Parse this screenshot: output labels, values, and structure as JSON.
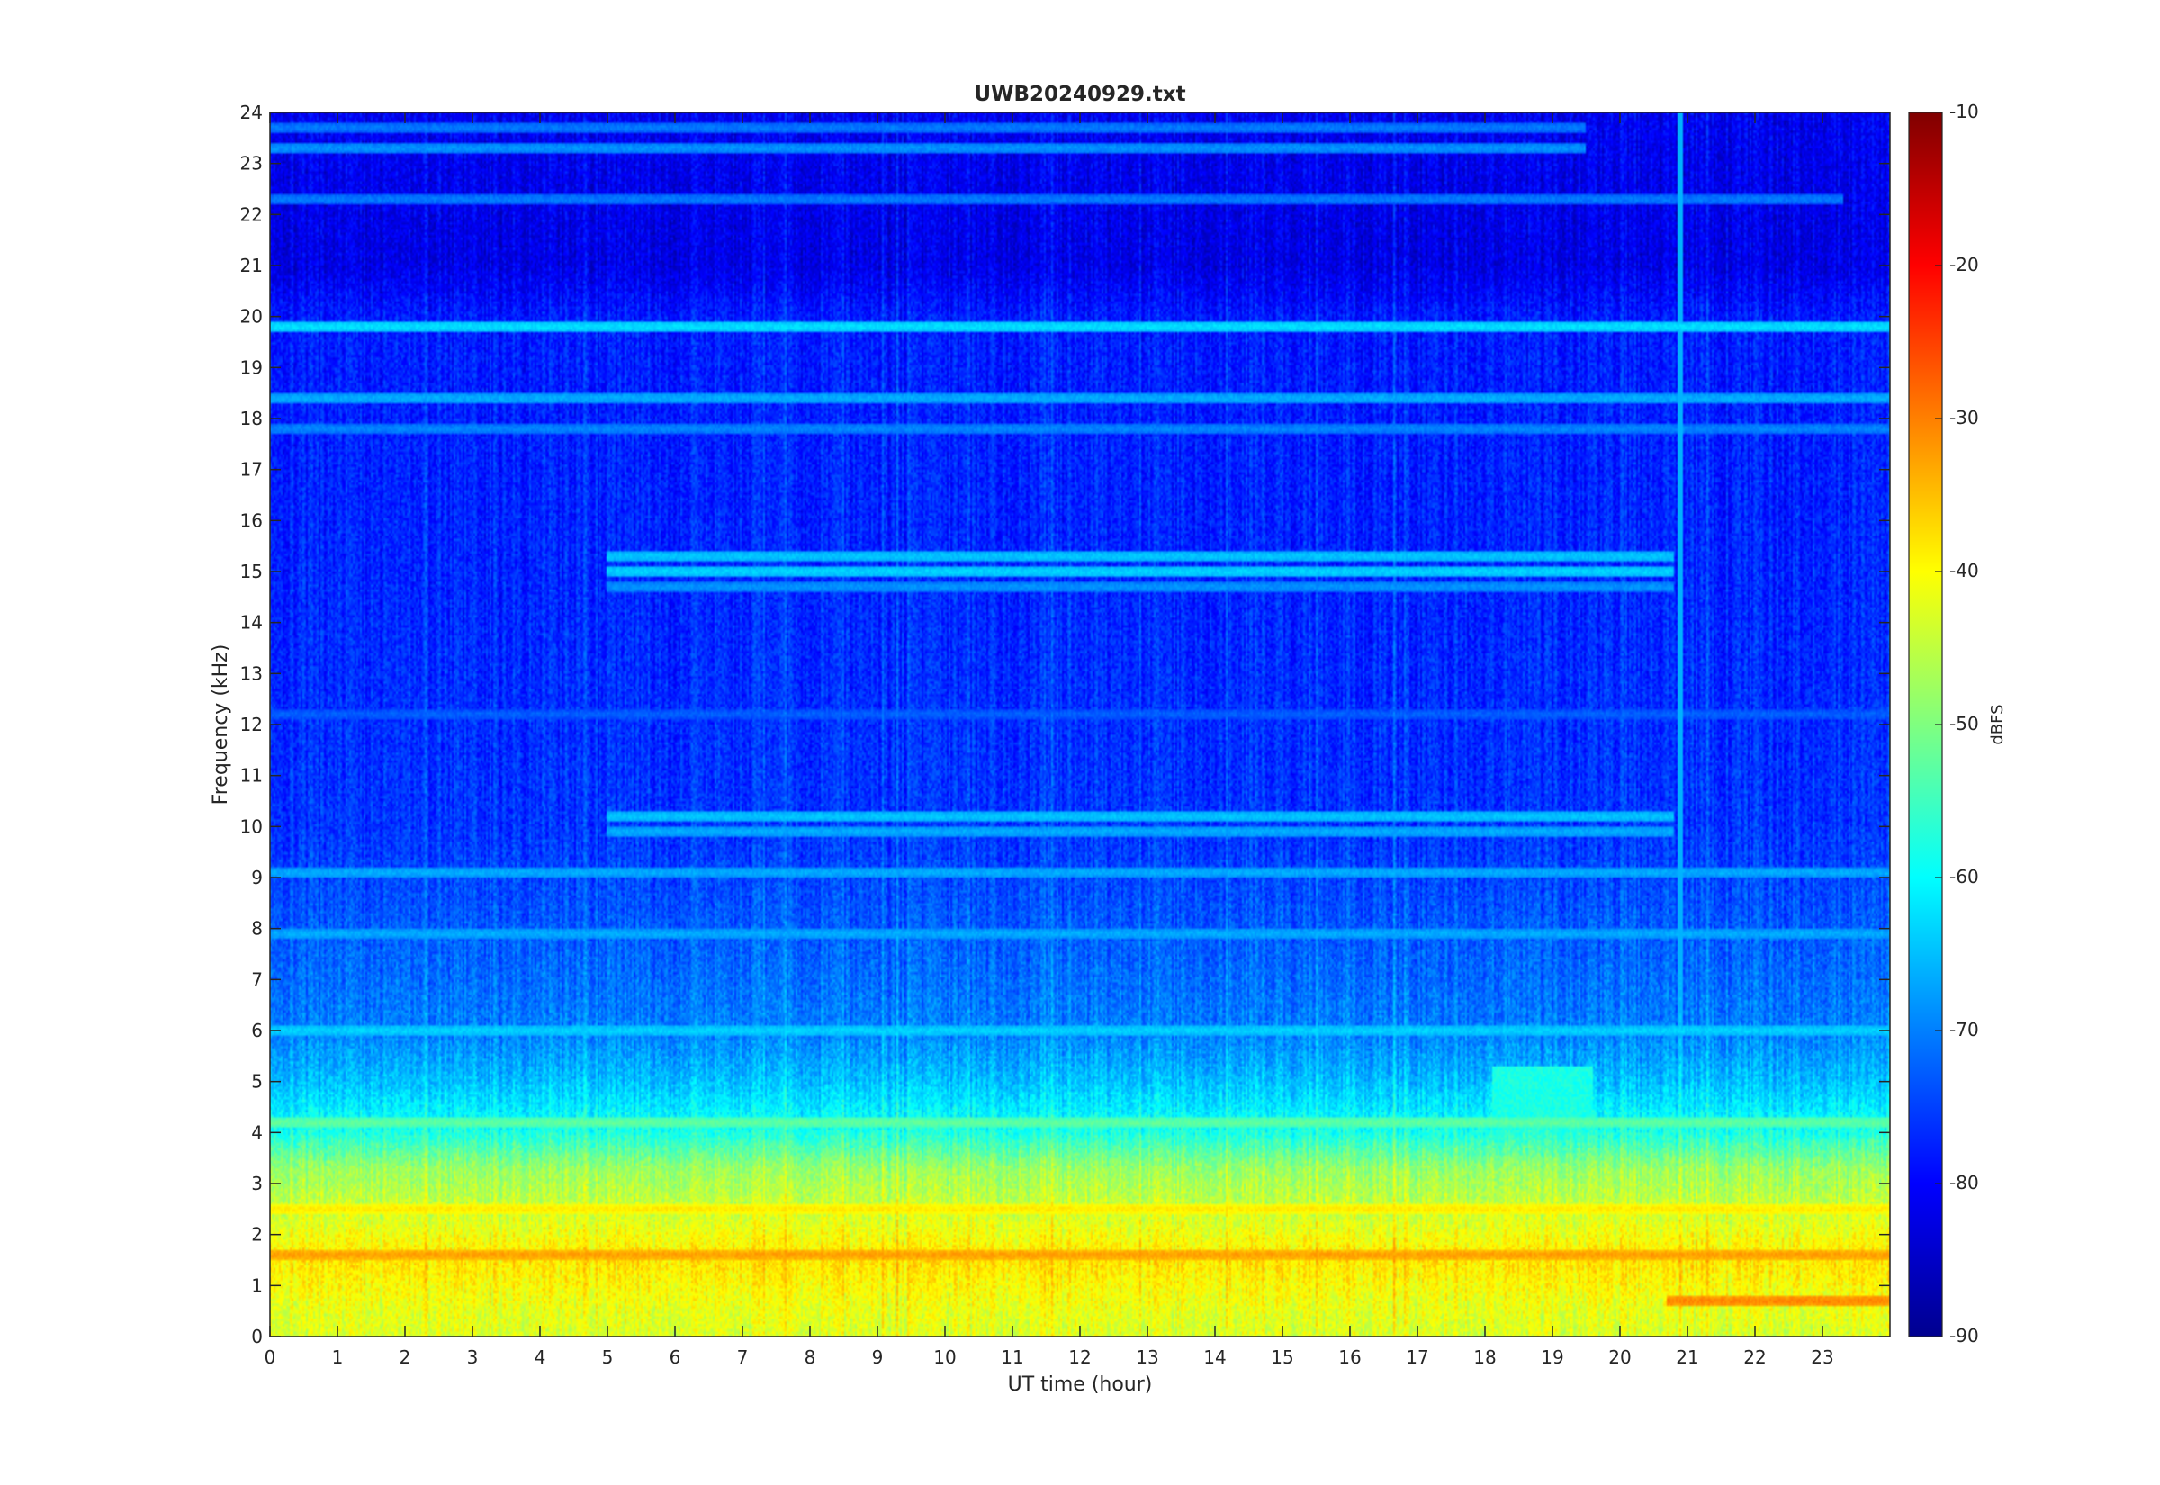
{
  "chart_data": {
    "type": "heatmap",
    "title": "UWB20240929.txt",
    "xlabel": "UT time (hour)",
    "ylabel": "Frequency (kHz)",
    "xlim": [
      0,
      24
    ],
    "ylim": [
      0,
      24
    ],
    "x_ticks": [
      "0",
      "1",
      "2",
      "3",
      "4",
      "5",
      "6",
      "7",
      "8",
      "9",
      "10",
      "11",
      "12",
      "13",
      "14",
      "15",
      "16",
      "17",
      "18",
      "19",
      "20",
      "21",
      "22",
      "23"
    ],
    "y_ticks": [
      "0",
      "1",
      "2",
      "3",
      "4",
      "5",
      "6",
      "7",
      "8",
      "9",
      "10",
      "11",
      "12",
      "13",
      "14",
      "15",
      "16",
      "17",
      "18",
      "19",
      "20",
      "21",
      "22",
      "23",
      "24"
    ],
    "colorbar": {
      "label": "dBFS",
      "range": [
        -90,
        -10
      ],
      "ticks": [
        "-10",
        "-20",
        "-30",
        "-40",
        "-50",
        "-60",
        "-70",
        "-80",
        "-90"
      ],
      "colormap": "jet"
    },
    "background_profile_dbfs": [
      {
        "f": 0,
        "v": -43
      },
      {
        "f": 0.5,
        "v": -42
      },
      {
        "f": 1.5,
        "v": -38
      },
      {
        "f": 2.5,
        "v": -44
      },
      {
        "f": 3.3,
        "v": -48
      },
      {
        "f": 4,
        "v": -58
      },
      {
        "f": 5,
        "v": -65
      },
      {
        "f": 6,
        "v": -70
      },
      {
        "f": 8,
        "v": -73
      },
      {
        "f": 10,
        "v": -76
      },
      {
        "f": 14,
        "v": -77
      },
      {
        "f": 20,
        "v": -78
      },
      {
        "f": 21,
        "v": -82
      },
      {
        "f": 24,
        "v": -81
      }
    ],
    "tone_lines": [
      {
        "freq_khz": 19.8,
        "dbfs": -62,
        "t_start": 0,
        "t_end": 24
      },
      {
        "freq_khz": 18.4,
        "dbfs": -66,
        "t_start": 0,
        "t_end": 24
      },
      {
        "freq_khz": 17.8,
        "dbfs": -69,
        "t_start": 0,
        "t_end": 24
      },
      {
        "freq_khz": 22.3,
        "dbfs": -70,
        "t_start": 0,
        "t_end": 23.3
      },
      {
        "freq_khz": 15.3,
        "dbfs": -64,
        "t_start": 5,
        "t_end": 20.8
      },
      {
        "freq_khz": 15.0,
        "dbfs": -63,
        "t_start": 5,
        "t_end": 20.8
      },
      {
        "freq_khz": 14.7,
        "dbfs": -68,
        "t_start": 5,
        "t_end": 20.8
      },
      {
        "freq_khz": 10.2,
        "dbfs": -64,
        "t_start": 5,
        "t_end": 20.8
      },
      {
        "freq_khz": 9.9,
        "dbfs": -66,
        "t_start": 5,
        "t_end": 20.8
      },
      {
        "freq_khz": 12.2,
        "dbfs": -72,
        "t_start": 0,
        "t_end": 24
      },
      {
        "freq_khz": 9.1,
        "dbfs": -66,
        "t_start": 0,
        "t_end": 24
      },
      {
        "freq_khz": 7.9,
        "dbfs": -66,
        "t_start": 0,
        "t_end": 24
      },
      {
        "freq_khz": 6.0,
        "dbfs": -63,
        "t_start": 0,
        "t_end": 24
      },
      {
        "freq_khz": 4.2,
        "dbfs": -52,
        "t_start": 0,
        "t_end": 24
      },
      {
        "freq_khz": 2.5,
        "dbfs": -38,
        "t_start": 0,
        "t_end": 24
      },
      {
        "freq_khz": 1.6,
        "dbfs": -32,
        "t_start": 0,
        "t_end": 24
      },
      {
        "freq_khz": 0.7,
        "dbfs": -30,
        "t_start": 20.7,
        "t_end": 24
      },
      {
        "freq_khz": 23.3,
        "dbfs": -68,
        "t_start": 0,
        "t_end": 19.5
      },
      {
        "freq_khz": 23.7,
        "dbfs": -70,
        "t_start": 0,
        "t_end": 19.5
      }
    ],
    "events": [
      {
        "description": "broadband burst",
        "t_start": 18.1,
        "t_end": 19.6,
        "f_low_khz": 3.5,
        "f_high_khz": 5.3,
        "dbfs": -58
      },
      {
        "description": "vertical line",
        "t": 20.9,
        "f_low_khz": 0,
        "f_high_khz": 24,
        "dbfs": -66
      }
    ],
    "colors": {
      "frame": "#262626",
      "background": "#ffffff"
    }
  }
}
